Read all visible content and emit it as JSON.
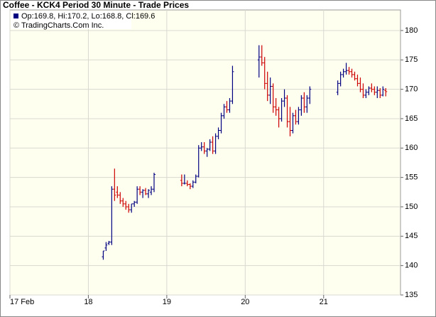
{
  "chart_data": {
    "type": "ohlc",
    "title": "Coffee - KCK4 Period 30 Minute - Trade Prices",
    "legend_text": "Op:169.8, Hi:170.2, Lo:168.8, Cl:169.6",
    "copyright": "© TradingCharts.Com Inc.",
    "legend_color": "#000080",
    "up_color": "#000080",
    "down_color": "#cc0000",
    "background": "#fffff0",
    "grid": true,
    "xlim": [
      17,
      21.98
    ],
    "xticks": [
      {
        "value": 17,
        "label": "17 Feb"
      },
      18,
      19,
      20,
      21
    ],
    "ylim": [
      135,
      183.5
    ],
    "yticks": [
      135,
      140,
      145,
      150,
      155,
      160,
      165,
      170,
      175,
      180
    ],
    "x": [
      18.19,
      18.226,
      18.262,
      18.298,
      18.334,
      18.37,
      18.406,
      18.442,
      18.478,
      18.514,
      18.55,
      18.586,
      18.622,
      18.658,
      18.694,
      18.73,
      18.766,
      18.802,
      18.838,
      19.19,
      19.226,
      19.262,
      19.298,
      19.334,
      19.37,
      19.406,
      19.442,
      19.478,
      19.514,
      19.55,
      19.586,
      19.622,
      19.658,
      19.694,
      19.73,
      19.766,
      19.802,
      19.838,
      20.176,
      20.212,
      20.248,
      20.284,
      20.32,
      20.356,
      20.392,
      20.428,
      20.464,
      20.5,
      20.536,
      20.572,
      20.608,
      20.644,
      20.68,
      20.716,
      20.752,
      20.788,
      20.824,
      21.18,
      21.216,
      21.252,
      21.288,
      21.324,
      21.36,
      21.396,
      21.432,
      21.468,
      21.504,
      21.54,
      21.576,
      21.612,
      21.648,
      21.684,
      21.72,
      21.756,
      21.792
    ],
    "open": [
      141.5,
      143,
      143.8,
      144,
      153,
      152.5,
      152,
      151,
      150.5,
      150,
      149.5,
      150.5,
      150.8,
      153,
      152.5,
      152.8,
      152.2,
      152.5,
      153,
      154.5,
      154,
      154,
      153.8,
      153.5,
      154.2,
      155.2,
      160,
      160.2,
      159.5,
      159.8,
      161,
      159.5,
      162,
      163,
      165.5,
      167,
      166.5,
      168,
      175,
      175.5,
      174.5,
      171,
      169,
      170.5,
      167,
      166.5,
      165,
      168,
      168.5,
      164.5,
      163,
      165.5,
      164.5,
      166.5,
      168.5,
      167,
      168.5,
      169.5,
      171,
      172.5,
      173,
      173.2,
      173,
      172.5,
      171.8,
      171,
      170,
      169,
      169.5,
      170.2,
      170,
      169.5,
      169.8,
      169,
      169.8
    ],
    "high": [
      142.5,
      144,
      144.2,
      153.5,
      156.5,
      153.5,
      152.5,
      151.5,
      151,
      150.5,
      150.5,
      151,
      153.5,
      153.5,
      153,
      153.2,
      153,
      153.5,
      155.8,
      155.5,
      155.5,
      154.5,
      154,
      154.5,
      155.5,
      160.5,
      161,
      161,
      160,
      161.5,
      162,
      162.5,
      163.5,
      166,
      167.5,
      168,
      168.5,
      174,
      177.5,
      177.5,
      175.5,
      173,
      172,
      171,
      168.5,
      167,
      168.5,
      170,
      169,
      167,
      166,
      166.5,
      167,
      169,
      169.5,
      169,
      170.5,
      171.5,
      173,
      173.5,
      174.5,
      173.8,
      173.5,
      173,
      172.5,
      172,
      171,
      170,
      170.5,
      171,
      170.5,
      170.5,
      170.2,
      170.5,
      170.2
    ],
    "low": [
      141,
      142.5,
      143.5,
      143.5,
      151,
      151.5,
      150.5,
      150,
      149.5,
      149,
      149,
      150,
      150.5,
      152,
      151.5,
      152,
      151.5,
      152,
      152.5,
      153.5,
      153.8,
      153.5,
      153,
      153.2,
      154,
      155,
      159.5,
      159,
      158.5,
      159.5,
      159,
      159,
      161.5,
      162.5,
      165,
      166,
      166,
      167.5,
      172,
      174,
      170,
      168,
      167.5,
      166,
      165.5,
      163.5,
      164.5,
      167,
      163.5,
      162,
      162.5,
      164,
      164,
      165.5,
      166,
      166,
      167.5,
      169,
      170.5,
      172,
      172.5,
      172.5,
      172,
      171.5,
      170.5,
      169.5,
      168.5,
      168.5,
      169,
      169.5,
      169,
      168.5,
      168.5,
      168.8,
      168.8
    ],
    "close": [
      142.5,
      143.5,
      144,
      153,
      152,
      152,
      151,
      150.5,
      150,
      149.5,
      150.5,
      150.8,
      153,
      152.5,
      152.8,
      152.2,
      152.8,
      153,
      155.5,
      154,
      154,
      153.8,
      153.5,
      154.2,
      155.2,
      160,
      160.2,
      159.5,
      159.8,
      161,
      159.5,
      162,
      163,
      165.5,
      167,
      166.5,
      168,
      173,
      175.5,
      174.5,
      171,
      169,
      170.5,
      167,
      166.5,
      165,
      168,
      168.5,
      164.5,
      163,
      165.5,
      164.5,
      166.5,
      168.5,
      167,
      168.5,
      170,
      171,
      172.5,
      173,
      173.2,
      173,
      172.5,
      171.8,
      171,
      170,
      169,
      169.5,
      170.2,
      170,
      169.5,
      169.8,
      169,
      170,
      169.6
    ]
  }
}
